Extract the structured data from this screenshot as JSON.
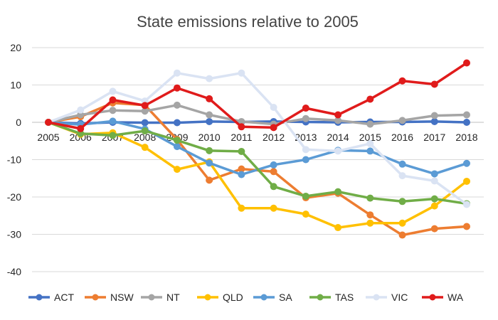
{
  "chart_data": {
    "type": "line",
    "title": "State emissions relative to 2005",
    "xlabel": "",
    "ylabel": "",
    "x": [
      "2005",
      "2006",
      "2007",
      "2008",
      "2009",
      "2010",
      "2011",
      "2012",
      "2013",
      "2014",
      "2015",
      "2016",
      "2017",
      "2018"
    ],
    "ylim": [
      -40,
      20
    ],
    "yticks": [
      20,
      10,
      0,
      -10,
      -20,
      -30,
      -40
    ],
    "grid": true,
    "legend": "bottom",
    "series": [
      {
        "name": "ACT",
        "color": "#4472C4",
        "values": [
          0,
          -0.3,
          0,
          -0.1,
          -0.1,
          0.2,
          0.1,
          0.2,
          0.1,
          0,
          0.1,
          0.1,
          0.2,
          0
        ]
      },
      {
        "name": "NSW",
        "color": "#ED7D31",
        "values": [
          0,
          1.5,
          5.2,
          4.6,
          -4.6,
          -15.5,
          -12.5,
          -13.2,
          -20.2,
          -19.0,
          -24.8,
          -30.2,
          -28.5,
          -27.9
        ]
      },
      {
        "name": "NT",
        "color": "#A5A5A5",
        "values": [
          0,
          2.0,
          3.2,
          3.0,
          4.6,
          2.0,
          0.2,
          -0.5,
          1.0,
          0.5,
          -0.5,
          0.5,
          1.8,
          2.0
        ]
      },
      {
        "name": "QLD",
        "color": "#FFC000",
        "values": [
          0,
          -3.2,
          -2.8,
          -6.7,
          -12.6,
          -10.6,
          -23.0,
          -23.0,
          -24.6,
          -28.2,
          -27.0,
          -27.0,
          -22.4,
          -15.8
        ]
      },
      {
        "name": "SA",
        "color": "#5B9BD5",
        "values": [
          0,
          -0.6,
          0.3,
          -1.8,
          -6.5,
          -10.9,
          -14.0,
          -11.4,
          -10.0,
          -7.5,
          -7.7,
          -11.2,
          -13.8,
          -11.0
        ]
      },
      {
        "name": "TAS",
        "color": "#70AD47",
        "values": [
          0,
          -3.0,
          -3.5,
          -2.3,
          -4.8,
          -7.6,
          -7.8,
          -17.2,
          -19.8,
          -18.6,
          -20.3,
          -21.2,
          -20.5,
          -21.8
        ]
      },
      {
        "name": "VIC",
        "color": "#DAE3F3",
        "values": [
          0,
          3.3,
          8.3,
          5.7,
          13.2,
          11.7,
          13.2,
          4.0,
          -7.3,
          -7.7,
          -5.7,
          -14.3,
          -15.7,
          -22.0
        ]
      },
      {
        "name": "WA",
        "color": "#E01B1B",
        "values": [
          0,
          -1.7,
          6.0,
          4.5,
          9.2,
          6.3,
          -1.2,
          -1.4,
          3.8,
          2.0,
          6.2,
          11.1,
          10.2,
          15.9
        ]
      }
    ]
  }
}
